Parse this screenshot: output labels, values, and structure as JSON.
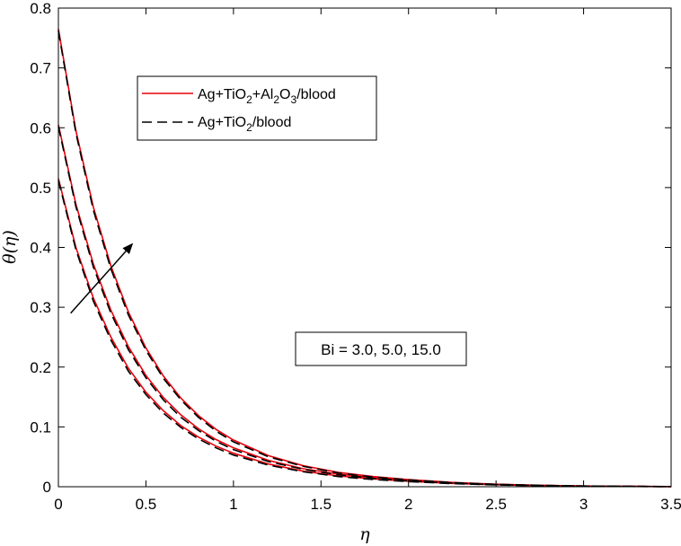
{
  "chart_data": {
    "type": "line",
    "xlabel": "η",
    "ylabel": "θ(η)",
    "xlim": [
      0,
      3.5
    ],
    "ylim": [
      0,
      0.8
    ],
    "xticks": [
      0,
      0.5,
      1,
      1.5,
      2,
      2.5,
      3,
      3.5
    ],
    "yticks": [
      0,
      0.1,
      0.2,
      0.3,
      0.4,
      0.5,
      0.6,
      0.7,
      0.8
    ],
    "xtick_labels": [
      "0",
      "0.5",
      "1",
      "1.5",
      "2",
      "2.5",
      "3",
      "3.5"
    ],
    "ytick_labels": [
      "0",
      "0.1",
      "0.2",
      "0.3",
      "0.4",
      "0.5",
      "0.6",
      "0.7",
      "0.8"
    ],
    "grid": false,
    "legend_position": "top-left",
    "x": [
      0,
      0.1,
      0.2,
      0.3,
      0.4,
      0.5,
      0.6,
      0.7,
      0.8,
      0.9,
      1.0,
      1.2,
      1.4,
      1.6,
      1.8,
      2.0,
      2.25,
      2.5,
      2.75,
      3.0,
      3.25,
      3.5
    ],
    "series": [
      {
        "name": "Ag+TiO2+Al2O3/blood",
        "style": "solid",
        "color": "#e8000b",
        "curves": [
          [
            0.515,
            0.4,
            0.315,
            0.25,
            0.198,
            0.158,
            0.127,
            0.102,
            0.083,
            0.068,
            0.056,
            0.038,
            0.026,
            0.018,
            0.013,
            0.009,
            0.0055,
            0.0032,
            0.0018,
            0.001,
            0.0005,
            0.0002
          ],
          [
            0.605,
            0.472,
            0.372,
            0.295,
            0.234,
            0.186,
            0.149,
            0.12,
            0.097,
            0.079,
            0.065,
            0.044,
            0.03,
            0.021,
            0.015,
            0.0105,
            0.0064,
            0.0037,
            0.0021,
            0.0011,
            0.0006,
            0.0002
          ],
          [
            0.765,
            0.595,
            0.467,
            0.369,
            0.292,
            0.232,
            0.185,
            0.148,
            0.119,
            0.096,
            0.078,
            0.052,
            0.035,
            0.024,
            0.017,
            0.012,
            0.0072,
            0.0042,
            0.0024,
            0.0013,
            0.0007,
            0.0003
          ]
        ]
      },
      {
        "name": "Ag+TiO2/blood",
        "style": "dashed",
        "color": "#000000",
        "curves": [
          [
            0.512,
            0.396,
            0.31,
            0.245,
            0.193,
            0.154,
            0.123,
            0.099,
            0.08,
            0.065,
            0.053,
            0.036,
            0.025,
            0.017,
            0.012,
            0.0085,
            0.0052,
            0.003,
            0.0017,
            0.0009,
            0.0005,
            0.0002
          ],
          [
            0.602,
            0.468,
            0.367,
            0.29,
            0.229,
            0.182,
            0.145,
            0.116,
            0.094,
            0.076,
            0.062,
            0.042,
            0.029,
            0.02,
            0.014,
            0.01,
            0.0061,
            0.0035,
            0.002,
            0.0011,
            0.0006,
            0.0002
          ],
          [
            0.762,
            0.591,
            0.462,
            0.364,
            0.287,
            0.228,
            0.181,
            0.145,
            0.116,
            0.093,
            0.075,
            0.05,
            0.034,
            0.023,
            0.016,
            0.0115,
            0.0069,
            0.004,
            0.0023,
            0.0012,
            0.0007,
            0.0003
          ]
        ]
      }
    ],
    "legend": {
      "entries": [
        {
          "pre": "Ag+TiO",
          "sub1": "2",
          "mid": "+Al",
          "sub2": "2",
          "mid2": "O",
          "sub3": "3",
          "post": "/blood"
        },
        {
          "pre": "Ag+TiO",
          "sub1": "2",
          "post": "/blood"
        }
      ]
    },
    "annotation": {
      "text": "Bi = 3.0, 5.0, 15.0",
      "arrow_from": [
        0.07,
        0.29
      ],
      "arrow_to": [
        0.42,
        0.405
      ]
    }
  }
}
